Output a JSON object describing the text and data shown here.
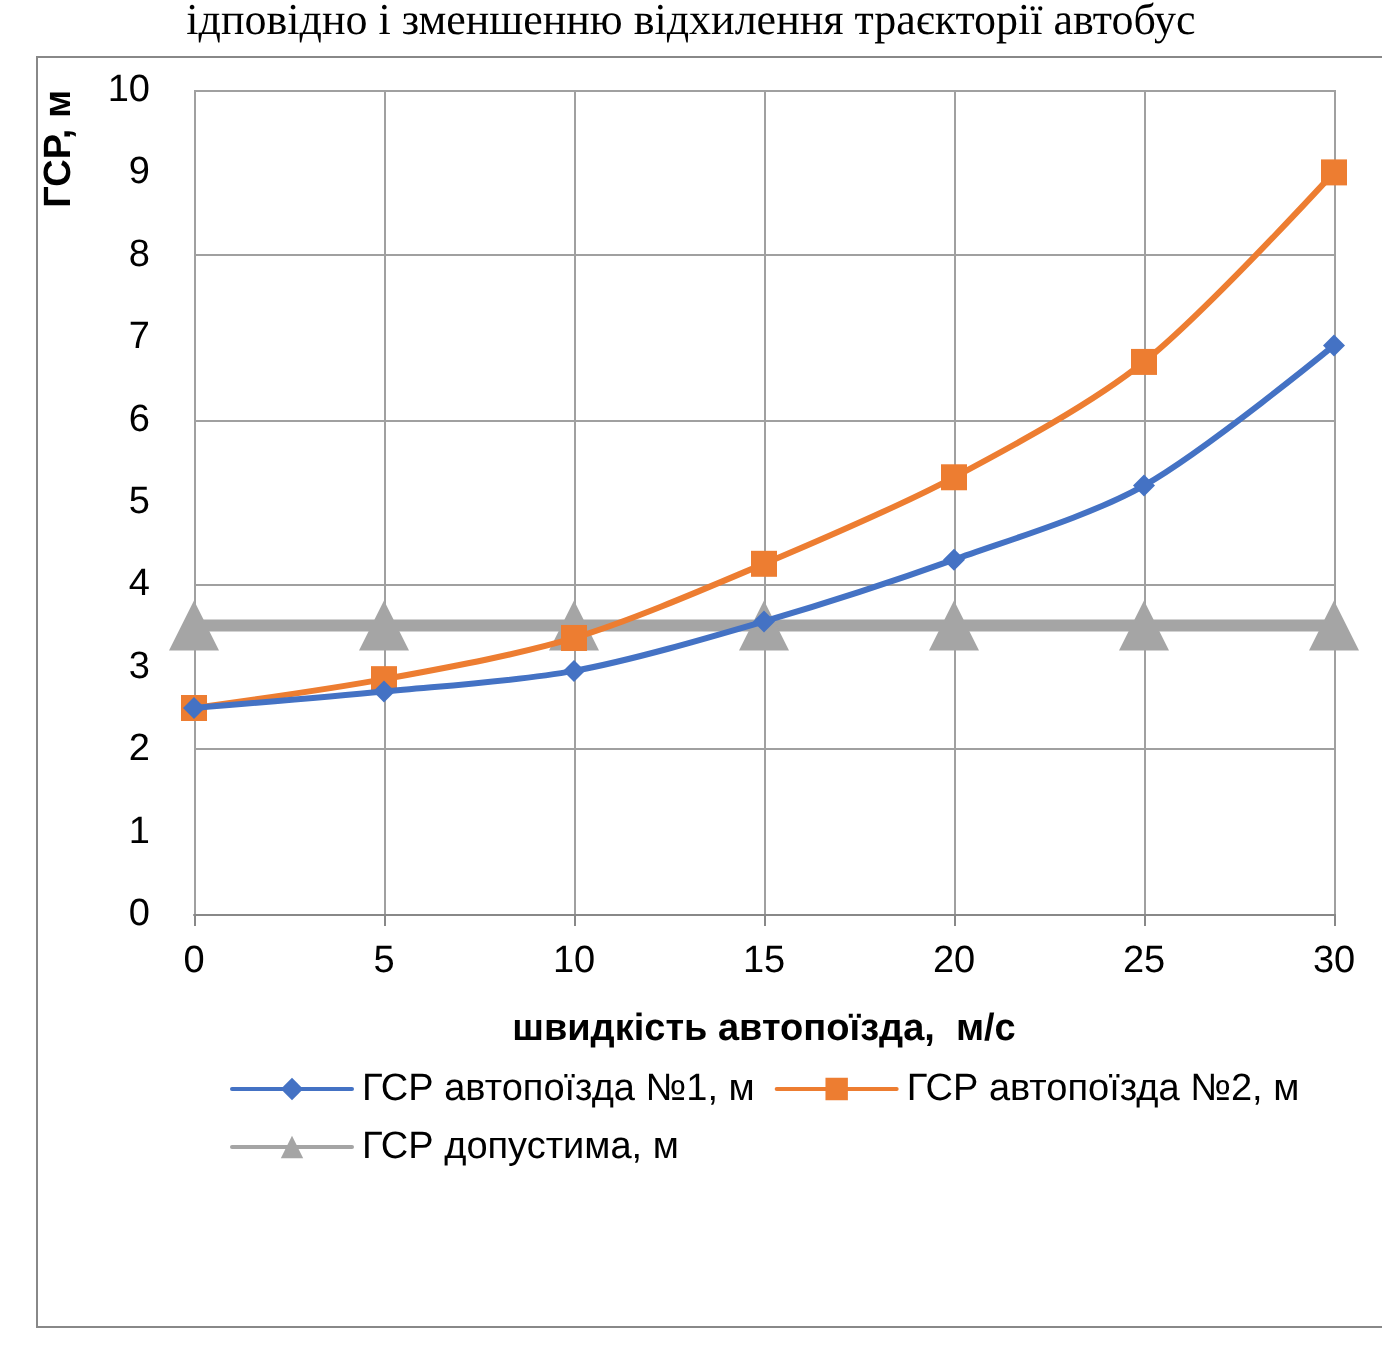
{
  "chart_data": {
    "type": "line",
    "annotations": [
      "ідповідно і зменшенню відхилення траєкторії автобус"
    ],
    "xlabel": "швидкість автопоїзда,  м/с",
    "ylabel": "ГСР, м",
    "x": [
      0,
      5,
      10,
      15,
      20,
      25,
      30
    ],
    "xlim": [
      0,
      30
    ],
    "xticks": [
      0,
      5,
      10,
      15,
      20,
      25,
      30
    ],
    "ylim": [
      0,
      10
    ],
    "yticks": [
      0,
      1,
      2,
      3,
      4,
      5,
      6,
      7,
      8,
      9,
      10
    ],
    "grid": true,
    "legend": "bottom",
    "series": [
      {
        "name": "ГСР автопоїзда №1, м",
        "color": "#4472c4",
        "marker": "diamond",
        "values": [
          2.5,
          2.7,
          2.95,
          3.55,
          4.3,
          5.2,
          6.9
        ]
      },
      {
        "name": "ГСР автопоїзда №2, м",
        "color": "#ed7d31",
        "marker": "square",
        "values": [
          2.5,
          2.85,
          3.35,
          4.25,
          5.3,
          6.7,
          9.0
        ]
      },
      {
        "name": "ГСР допустима, м",
        "color": "#a5a5a5",
        "marker": "triangle",
        "values": [
          3.5,
          3.5,
          3.5,
          3.5,
          3.5,
          3.5,
          3.5
        ]
      }
    ]
  }
}
